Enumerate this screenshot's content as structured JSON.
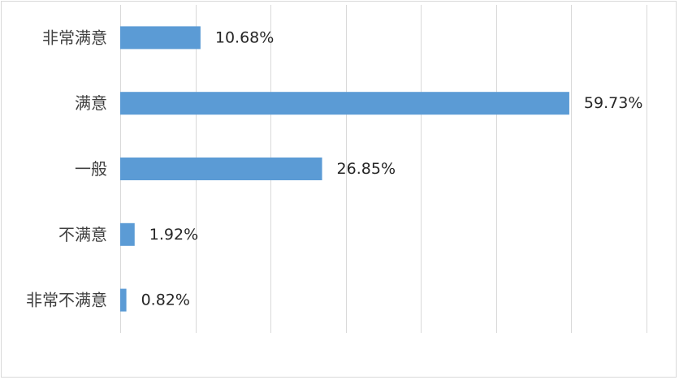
{
  "chart_data": {
    "type": "bar",
    "orientation": "horizontal",
    "categories": [
      "非常满意",
      "满意",
      "一般",
      "不满意",
      "非常不满意"
    ],
    "values": [
      10.68,
      59.73,
      26.85,
      1.92,
      0.82
    ],
    "value_labels": [
      "10.68%",
      "59.73%",
      "26.85%",
      "1.92%",
      "0.82%"
    ],
    "xlim": [
      0,
      70
    ],
    "grid": true,
    "gridlines": 7,
    "legend": "none",
    "title": "",
    "xlabel": "",
    "ylabel": "",
    "colors": {
      "bar": "#5b9bd5",
      "grid": "#d9d9d9",
      "label": "#404040",
      "value": "#262626"
    }
  }
}
